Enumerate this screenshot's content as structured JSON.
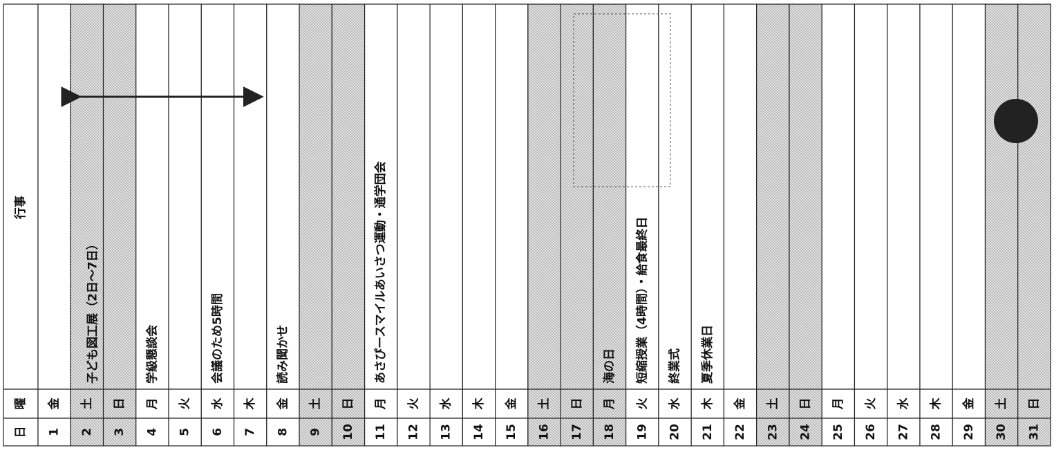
{
  "header": {
    "day": "日",
    "weekday": "曜",
    "events": "行事"
  },
  "rows": [
    {
      "day": 1,
      "weekday": "金"
    },
    {
      "day": 2,
      "weekday": "土",
      "shaded": true,
      "event": "子ども図工展（2日～7日）"
    },
    {
      "day": 3,
      "weekday": "日",
      "shaded": true
    },
    {
      "day": 4,
      "weekday": "月",
      "event": "学級懇談会"
    },
    {
      "day": 5,
      "weekday": "火"
    },
    {
      "day": 6,
      "weekday": "水",
      "event": "会議のため5時間"
    },
    {
      "day": 7,
      "weekday": "木"
    },
    {
      "day": 8,
      "weekday": "金",
      "event": "読み聞かせ"
    },
    {
      "day": 9,
      "weekday": "土",
      "shaded": true
    },
    {
      "day": 10,
      "weekday": "日",
      "shaded": true
    },
    {
      "day": 11,
      "weekday": "月",
      "event": "あさぴースマイルあいさつ運動・通学団会"
    },
    {
      "day": 12,
      "weekday": "火"
    },
    {
      "day": 13,
      "weekday": "水"
    },
    {
      "day": 14,
      "weekday": "木"
    },
    {
      "day": 15,
      "weekday": "金"
    },
    {
      "day": 16,
      "weekday": "土",
      "shaded": true
    },
    {
      "day": 17,
      "weekday": "日",
      "shaded": true
    },
    {
      "day": 18,
      "weekday": "月",
      "shaded": true,
      "event": "海の日"
    },
    {
      "day": 19,
      "weekday": "火",
      "event": "短縮授業（4時間）・給食最終日"
    },
    {
      "day": 20,
      "weekday": "水",
      "event": "終業式"
    },
    {
      "day": 21,
      "weekday": "木",
      "event": "夏季休業日"
    },
    {
      "day": 22,
      "weekday": "金"
    },
    {
      "day": 23,
      "weekday": "土",
      "shaded": true
    },
    {
      "day": 24,
      "weekday": "日",
      "shaded": true
    },
    {
      "day": 25,
      "weekday": "月"
    },
    {
      "day": 26,
      "weekday": "火"
    },
    {
      "day": 27,
      "weekday": "水"
    },
    {
      "day": 28,
      "weekday": "木"
    },
    {
      "day": 29,
      "weekday": "金"
    },
    {
      "day": 30,
      "weekday": "土",
      "shaded": true
    },
    {
      "day": 31,
      "weekday": "日",
      "shaded": true
    }
  ]
}
